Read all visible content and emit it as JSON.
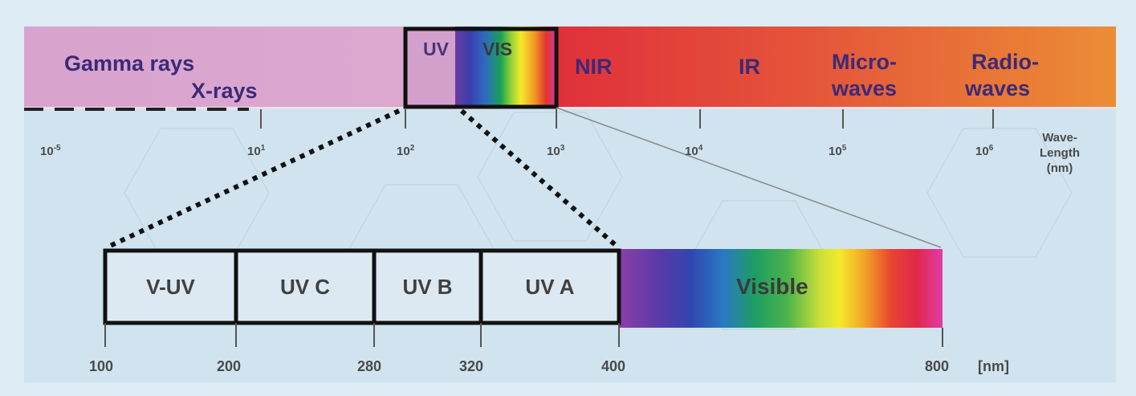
{
  "colors": {
    "background": "#dcebf4",
    "diagram_bg": "#d0e3ef",
    "gamma_band": "#d9a6cf",
    "ir_band_start": "#e23a37",
    "ir_band_end": "#ec8a34",
    "band_text": "#3b2a78",
    "tick_text": "#4a4a4a"
  },
  "top_bands": {
    "gamma": "Gamma rays",
    "xray": "X-rays",
    "uv": "UV",
    "vis": "VIS",
    "nir": "NIR",
    "ir": "IR",
    "micro_1": "Micro-",
    "micro_2": "waves",
    "radio_1": "Radio-",
    "radio_2": "waves"
  },
  "top_scale": {
    "ticks": [
      {
        "base": "10",
        "exp": "-5"
      },
      {
        "base": "10",
        "exp": "1"
      },
      {
        "base": "10",
        "exp": "2"
      },
      {
        "base": "10",
        "exp": "3"
      },
      {
        "base": "10",
        "exp": "4"
      },
      {
        "base": "10",
        "exp": "5"
      },
      {
        "base": "10",
        "exp": "6"
      }
    ],
    "unit_1": "Wave-",
    "unit_2": "Length",
    "unit_3": "(nm)"
  },
  "bottom_boxes": {
    "vuv": "V-UV",
    "uvc": "UV C",
    "uvb": "UV B",
    "uva": "UV A",
    "visible": "Visible"
  },
  "bottom_scale": {
    "ticks": [
      "100",
      "200",
      "280",
      "320",
      "400",
      "800"
    ],
    "unit": "[nm]"
  }
}
